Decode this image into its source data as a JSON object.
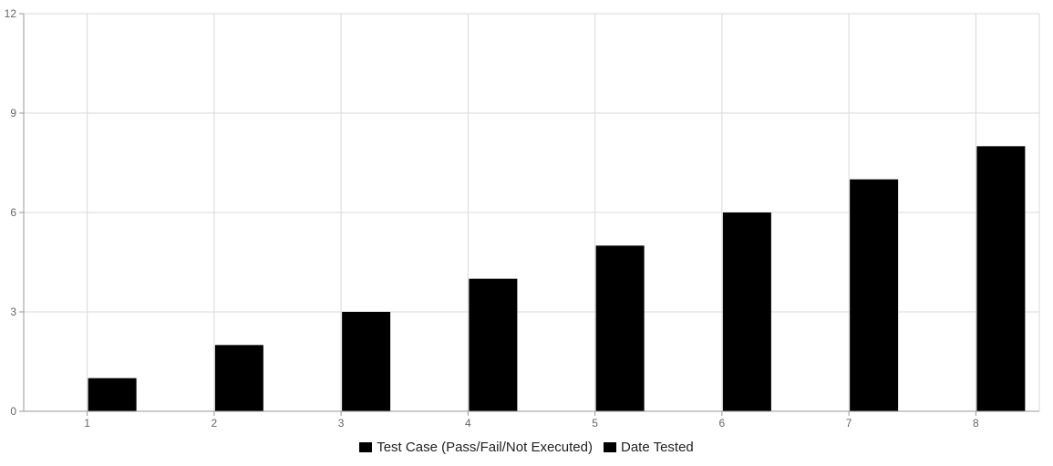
{
  "chart_data": {
    "type": "bar",
    "title": "",
    "xlabel": "",
    "ylabel": "",
    "categories": [
      "1",
      "2",
      "3",
      "4",
      "5",
      "6",
      "7",
      "8"
    ],
    "series": [
      {
        "name": "Test Case (Pass/Fail/Not Executed)",
        "color": "#000000",
        "values": [
          0,
          0,
          0,
          0,
          0,
          0,
          0,
          0
        ]
      },
      {
        "name": "Date Tested",
        "color": "#000000",
        "values": [
          1,
          2,
          3,
          4,
          5,
          6,
          7,
          8
        ]
      }
    ],
    "ylim": [
      0,
      12
    ],
    "yticks": [
      0,
      3,
      6,
      9,
      12
    ],
    "grid": true,
    "legend": "bottom-center",
    "colors": {
      "grid": "#d9d9d9",
      "axis": "#999999",
      "tick_text": "#666666"
    }
  }
}
